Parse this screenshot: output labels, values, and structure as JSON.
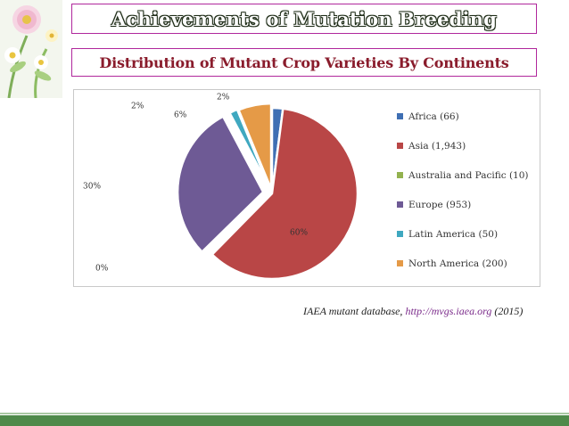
{
  "slide": {
    "title": "Achievements of  Mutation Breeding",
    "subtitle": "Distribution of Mutant Crop Varieties By Continents",
    "citation": {
      "prefix": "IAEA mutant database, ",
      "link": "http://mvgs.iaea.org",
      "suffix": " (2015)"
    },
    "colors": {
      "frame": "#b0279c",
      "subtitle": "#8a1c2c",
      "bar": "#4f8a4a"
    },
    "decoration_icon": "daisy-flowers-icon"
  },
  "chart_data": {
    "type": "pie",
    "title": "",
    "legend_position": "right",
    "slices": [
      {
        "label": "Africa (66)",
        "value": 66,
        "pct_label": "2%",
        "color": "#3f6fb3"
      },
      {
        "label": "Asia (1,943)",
        "value": 1943,
        "pct_label": "60%",
        "color": "#b94646"
      },
      {
        "label": "Australia and Pacific (10)",
        "value": 10,
        "pct_label": "0%",
        "color": "#93b24f"
      },
      {
        "label": "Europe (953)",
        "value": 953,
        "pct_label": "30%",
        "color": "#6e5a95"
      },
      {
        "label": "Latin America (50)",
        "value": 50,
        "pct_label": "2%",
        "color": "#3fa8c0"
      },
      {
        "label": "North America (200)",
        "value": 200,
        "pct_label": "6%",
        "color": "#e59a47"
      }
    ]
  }
}
